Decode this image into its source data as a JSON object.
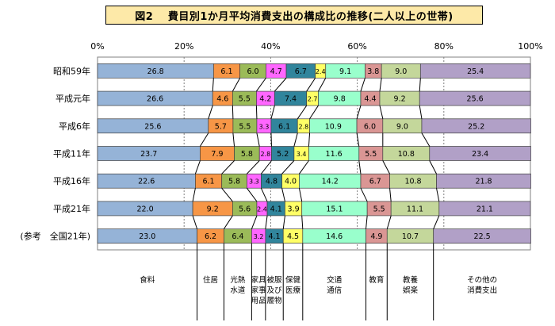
{
  "chart_data": {
    "type": "bar",
    "stacked": "100%",
    "orientation": "horizontal",
    "title": "図2　 費目別1か月平均消費支出の構成比の推移(二人以上の世帯)",
    "x_ticks": [
      "0%",
      "20%",
      "40%",
      "60%",
      "80%",
      "100%"
    ],
    "xlim": [
      0,
      100
    ],
    "grid": true,
    "categories": [
      "昭和59年",
      "平成元年",
      "平成6年",
      "平成11年",
      "平成16年",
      "平成21年",
      "(参考　全国21年)"
    ],
    "series": [
      {
        "name": "食料",
        "color": "#95b3d7",
        "values": [
          26.8,
          26.6,
          25.6,
          23.7,
          22.6,
          22.0,
          23.0
        ]
      },
      {
        "name": "住居",
        "color": "#f79646",
        "values": [
          6.1,
          4.6,
          5.7,
          7.9,
          6.1,
          9.2,
          6.2
        ]
      },
      {
        "name": "光熱水道",
        "color": "#9bbb59",
        "values": [
          6.0,
          5.5,
          5.5,
          5.8,
          5.8,
          5.6,
          6.4
        ]
      },
      {
        "name": "家具家事用品",
        "color": "#ff66ff",
        "values": [
          4.7,
          4.2,
          3.3,
          2.8,
          3.3,
          2.4,
          3.2
        ]
      },
      {
        "name": "被服及び履物",
        "color": "#31859c",
        "values": [
          6.7,
          7.4,
          6.1,
          5.2,
          4.8,
          4.1,
          4.1
        ]
      },
      {
        "name": "保健医療",
        "color": "#ffff66",
        "values": [
          2.4,
          2.7,
          2.8,
          3.4,
          4.0,
          3.9,
          4.5
        ]
      },
      {
        "name": "交通通信",
        "color": "#99ffcc",
        "values": [
          9.1,
          9.8,
          10.9,
          11.6,
          14.2,
          15.1,
          14.6
        ]
      },
      {
        "name": "教育",
        "color": "#da9694",
        "values": [
          3.8,
          4.4,
          6.0,
          5.5,
          6.7,
          5.5,
          4.9
        ]
      },
      {
        "name": "教養娯楽",
        "color": "#c4d79b",
        "values": [
          9.0,
          9.2,
          9.0,
          10.8,
          10.8,
          11.1,
          10.7
        ]
      },
      {
        "name": "その他の消費支出",
        "color": "#b1a0c7",
        "values": [
          25.4,
          25.6,
          25.2,
          23.4,
          21.8,
          21.1,
          22.5
        ]
      }
    ],
    "legend_labels": [
      {
        "lines": [
          "食料"
        ]
      },
      {
        "lines": [
          "住居"
        ]
      },
      {
        "lines": [
          "光熱",
          "水道"
        ]
      },
      {
        "lines": [
          "家具",
          "家事",
          "用品"
        ]
      },
      {
        "lines": [
          "被服",
          "及び",
          "履物"
        ]
      },
      {
        "lines": [
          "保健",
          "医療"
        ]
      },
      {
        "lines": [
          "交通",
          "通信"
        ]
      },
      {
        "lines": [
          "教育"
        ]
      },
      {
        "lines": [
          "教養",
          "娯楽"
        ]
      },
      {
        "lines": [
          "その他の",
          "消費支出"
        ]
      }
    ]
  }
}
